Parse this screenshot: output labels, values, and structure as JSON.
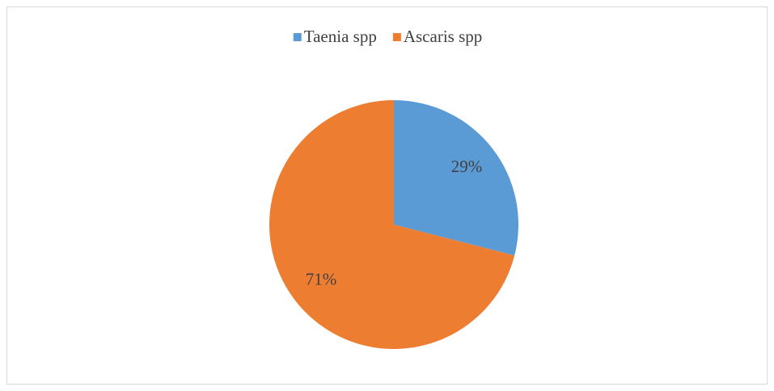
{
  "chart_data": {
    "type": "pie",
    "categories": [
      "Taenia spp",
      "Ascaris spp"
    ],
    "values": [
      29,
      71
    ],
    "value_labels": [
      "29%",
      "71%"
    ],
    "colors": [
      "#5b9bd5",
      "#ed7d31"
    ],
    "legend": "top"
  }
}
